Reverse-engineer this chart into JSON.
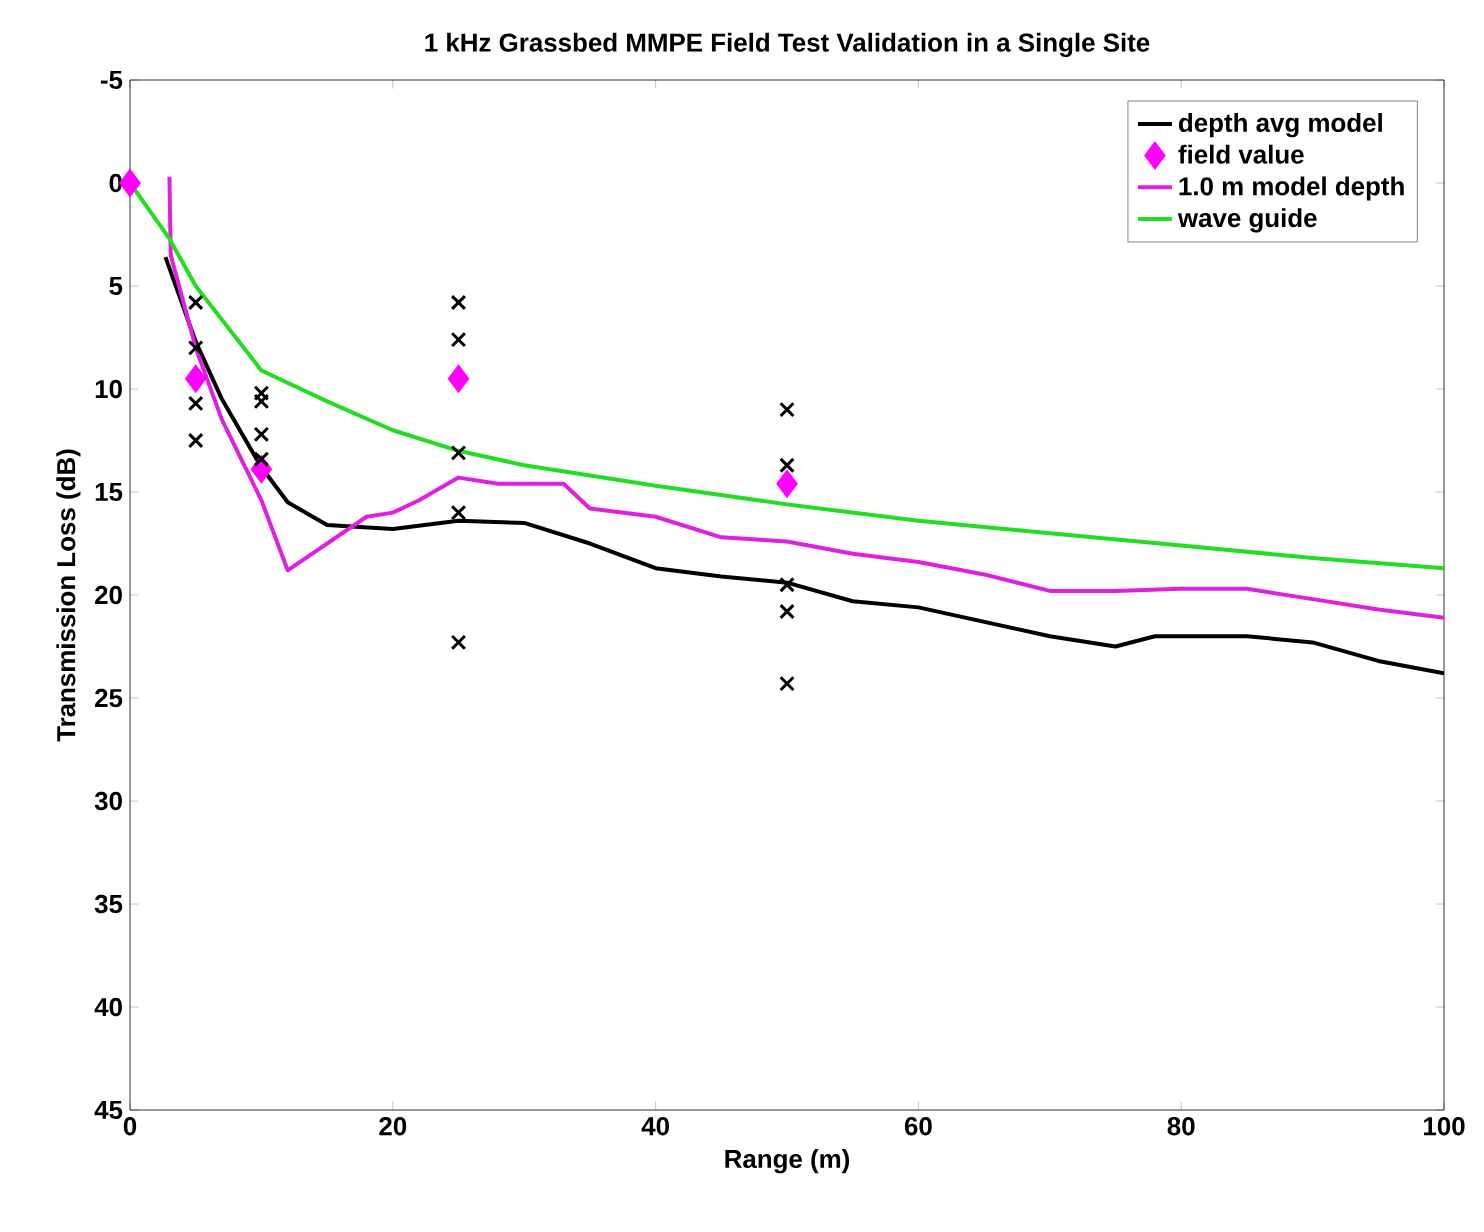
{
  "chart_data": {
    "type": "line",
    "title": "1 kHz Grassbed MMPE Field Test Validation in a Single Site",
    "xlabel": "Range (m)",
    "ylabel": "Transmission Loss (dB)",
    "xlim": [
      0,
      100
    ],
    "xticks": [
      0,
      20,
      40,
      60,
      80,
      100
    ],
    "ylim": [
      45,
      -5
    ],
    "yticks": [
      -5,
      0,
      5,
      10,
      15,
      20,
      25,
      30,
      35,
      40,
      45
    ],
    "grid": false,
    "legend": "top right",
    "line_style": "solid",
    "series": [
      {
        "name": "depth avg model",
        "color": "#000000",
        "x": [
          2.7,
          5,
          7,
          10,
          12,
          15,
          20,
          25,
          30,
          35,
          40,
          45,
          50,
          55,
          60,
          65,
          70,
          75,
          78,
          85,
          90,
          95,
          100
        ],
        "values": [
          3.6,
          7.7,
          10.5,
          13.8,
          15.5,
          16.6,
          16.8,
          16.4,
          16.5,
          17.5,
          18.7,
          19.1,
          19.4,
          20.3,
          20.6,
          21.3,
          22,
          22.5,
          22,
          22,
          22.3,
          23.2,
          23.8
        ]
      },
      {
        "name": "field value",
        "type": "scatter",
        "marker": "diamond",
        "color": "#ff00ff",
        "x": [
          0,
          5,
          10,
          25,
          50
        ],
        "values": [
          0,
          9.5,
          13.9,
          9.5,
          14.6
        ]
      },
      {
        "name": "1.0 m model depth",
        "color": "#e020e0",
        "x": [
          3,
          3.1,
          5,
          7,
          10,
          12,
          15,
          18,
          20,
          22,
          25,
          28,
          33,
          35,
          40,
          45,
          50,
          55,
          60,
          65,
          70,
          75,
          80,
          85,
          90,
          95,
          100
        ],
        "values": [
          -0.3,
          3.5,
          8,
          11.5,
          15.4,
          18.8,
          17.5,
          16.2,
          16,
          15.4,
          14.3,
          14.6,
          14.6,
          15.8,
          16.2,
          17.2,
          17.4,
          18,
          18.4,
          19,
          19.8,
          19.8,
          19.7,
          19.7,
          20.2,
          20.7,
          21.1
        ]
      },
      {
        "name": "wave guide",
        "color": "#22dd22",
        "x": [
          0,
          3,
          5,
          10,
          15,
          20,
          25,
          30,
          40,
          50,
          60,
          70,
          80,
          90,
          100
        ],
        "values": [
          0,
          2.7,
          5,
          9.1,
          10.6,
          12,
          13,
          13.7,
          14.7,
          15.6,
          16.4,
          17,
          17.6,
          18.2,
          18.7
        ]
      },
      {
        "type": "scatter",
        "marker": "cross",
        "color": "#000000",
        "x": [
          5,
          5,
          5,
          5,
          10,
          10,
          10,
          10,
          25,
          25,
          25,
          25,
          25,
          50,
          50,
          50,
          50,
          50
        ],
        "values": [
          5.8,
          8,
          10.7,
          12.5,
          10.2,
          10.6,
          12.2,
          13.4,
          5.8,
          7.6,
          13.1,
          16,
          22.3,
          11,
          13.7,
          19.5,
          20.8,
          24.3
        ]
      }
    ]
  }
}
